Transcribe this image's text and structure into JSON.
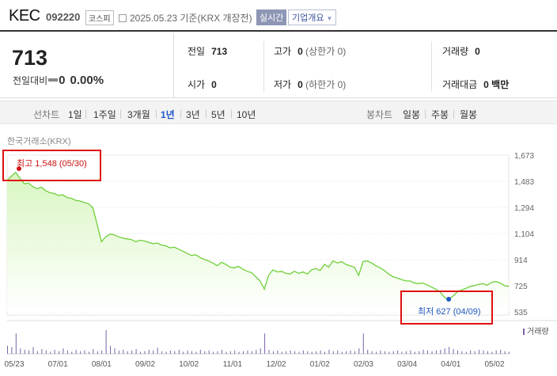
{
  "header": {
    "name": "KEC",
    "code": "092220",
    "market": "코스피",
    "date": "2025.05.23 기준(KRX 개장전)",
    "realtime": "실시간",
    "company_info": "기업개요"
  },
  "price": {
    "current": "713",
    "change_label": "전일대비",
    "change_value": "0",
    "change_pct": "0.00%"
  },
  "stats": {
    "prev_label": "전일",
    "prev": "713",
    "high_label": "고가",
    "high": "0",
    "high_limit": "(상한가 0)",
    "volume_label": "거래량",
    "volume": "0",
    "open_label": "시가",
    "open": "0",
    "low_label": "저가",
    "low": "0",
    "low_limit": "(하한가 0)",
    "amount_label": "거래대금",
    "amount": "0 백만"
  },
  "tabs": {
    "line_label": "선차트",
    "line": [
      "1일",
      "1주일",
      "3개월",
      "1년",
      "3년",
      "5년",
      "10년"
    ],
    "active": "1년",
    "candle_label": "봉차트",
    "candle": [
      "일봉",
      "주봉",
      "월봉"
    ]
  },
  "chart_data": {
    "type": "area",
    "source": "한국거래소(KRX)",
    "x_ticks": [
      "05/23",
      "07/01",
      "08/01",
      "09/02",
      "10/02",
      "11/01",
      "12/02",
      "01/02",
      "02/03",
      "03/04",
      "04/01",
      "05/02"
    ],
    "y_ticks": [
      1673,
      1483,
      1294,
      1104,
      914,
      725,
      535
    ],
    "ylim": [
      535,
      1673
    ],
    "high_text": "최고 1,548 (05/30)",
    "low_text": "최저 627 (04/09)",
    "volume_label": "거래량",
    "line_color": "#6ecf3a",
    "fill_color": "#d9f6c2",
    "series": [
      {
        "values": [
          1490,
          1520,
          1548,
          1505,
          1465,
          1470,
          1445,
          1430,
          1440,
          1415,
          1400,
          1395,
          1380,
          1385,
          1365,
          1360,
          1345,
          1340,
          1330,
          1320,
          1290,
          1170,
          1045,
          1080,
          1100,
          1095,
          1080,
          1070,
          1065,
          1060,
          1045,
          1055,
          1050,
          1040,
          1030,
          1035,
          1020,
          1015,
          1000,
          1005,
          990,
          975,
          960,
          945,
          950,
          930,
          915,
          905,
          890,
          870,
          895,
          880,
          860,
          855,
          865,
          845,
          830,
          820,
          790,
          760,
          700,
          800,
          840,
          825,
          830,
          815,
          810,
          830,
          815,
          825,
          810,
          840,
          850,
          835,
          880,
          860,
          905,
          890,
          900,
          880,
          870,
          860,
          800,
          900,
          905,
          890,
          870,
          855,
          835,
          810,
          790,
          780,
          770,
          760,
          760,
          745,
          740,
          745,
          730,
          715,
          700,
          680,
          640,
          627,
          650,
          680,
          695,
          705,
          720,
          725,
          735,
          740,
          728,
          750,
          755,
          745,
          725,
          720
        ]
      }
    ],
    "volume": [
      12,
      10,
      30,
      8,
      6,
      5,
      10,
      4,
      7,
      5,
      3,
      6,
      4,
      8,
      5,
      3,
      6,
      4,
      5,
      3,
      7,
      4,
      5,
      35,
      12,
      8,
      5,
      6,
      4,
      5,
      7,
      3,
      4,
      6,
      5,
      9,
      4,
      3,
      5,
      4,
      6,
      3,
      5,
      4,
      3,
      6,
      4,
      5,
      3,
      4,
      6,
      3,
      4,
      5,
      3,
      4,
      5,
      4,
      6,
      8,
      30,
      6,
      4,
      5,
      3,
      4,
      5,
      4,
      3,
      5,
      4,
      3,
      4,
      5,
      3,
      6,
      4,
      5,
      3,
      4,
      5,
      4,
      8,
      30,
      6,
      4,
      3,
      5,
      4,
      3,
      4,
      5,
      3,
      4,
      5,
      3,
      4,
      6,
      5,
      4,
      5,
      6,
      8,
      10,
      7,
      5,
      4,
      3,
      5,
      4,
      6,
      5,
      4,
      3,
      5,
      6,
      4,
      3
    ]
  }
}
